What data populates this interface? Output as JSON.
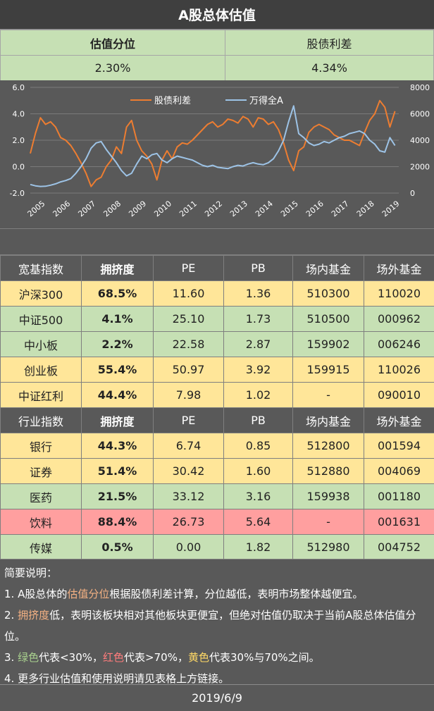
{
  "title": "A股总体估值",
  "valuation": {
    "headers": [
      "估值分位",
      "股债利差"
    ],
    "values": [
      "2.30%",
      "4.34%"
    ]
  },
  "chart_data": {
    "type": "line",
    "legend": [
      "股债利差",
      "万得全A"
    ],
    "left_axis": {
      "min": -2,
      "max": 6,
      "ticks": [
        "-2.0",
        "0.0",
        "2.0",
        "4.0",
        "6.0"
      ]
    },
    "right_axis": {
      "min": 0,
      "max": 8000,
      "ticks": [
        "0",
        "2000",
        "4000",
        "6000",
        "8000"
      ]
    },
    "x_labels": [
      "2005",
      "2006",
      "2007",
      "2008",
      "2009",
      "2010",
      "2011",
      "2012",
      "2013",
      "2014",
      "2015",
      "2016",
      "2017",
      "2018",
      "2019"
    ],
    "series": [
      {
        "name": "股债利差",
        "axis": "left",
        "color": "#ed7d31",
        "x": [
          2005.0,
          2005.2,
          2005.4,
          2005.6,
          2005.8,
          2006.0,
          2006.2,
          2006.4,
          2006.6,
          2006.8,
          2007.0,
          2007.2,
          2007.4,
          2007.6,
          2007.8,
          2008.0,
          2008.2,
          2008.4,
          2008.6,
          2008.8,
          2009.0,
          2009.2,
          2009.4,
          2009.6,
          2009.8,
          2010.0,
          2010.2,
          2010.4,
          2010.6,
          2010.8,
          2011.0,
          2011.2,
          2011.4,
          2011.6,
          2011.8,
          2012.0,
          2012.2,
          2012.4,
          2012.6,
          2012.8,
          2013.0,
          2013.2,
          2013.4,
          2013.6,
          2013.8,
          2014.0,
          2014.2,
          2014.4,
          2014.6,
          2014.8,
          2015.0,
          2015.2,
          2015.4,
          2015.6,
          2015.8,
          2016.0,
          2016.2,
          2016.4,
          2016.6,
          2016.8,
          2017.0,
          2017.2,
          2017.4,
          2017.6,
          2017.8,
          2018.0,
          2018.2,
          2018.4,
          2018.6,
          2018.8,
          2019.0,
          2019.2,
          2019.4
        ],
        "y": [
          1.0,
          2.5,
          3.7,
          3.2,
          3.4,
          3.0,
          2.2,
          2.0,
          1.6,
          1.0,
          0.3,
          -0.5,
          -1.5,
          -1.0,
          -0.8,
          0.0,
          0.5,
          1.5,
          1.0,
          3.0,
          3.5,
          2.0,
          1.2,
          0.8,
          0.2,
          -1.0,
          0.5,
          1.2,
          0.6,
          1.5,
          1.8,
          1.7,
          2.0,
          2.4,
          2.8,
          3.2,
          3.4,
          3.0,
          3.2,
          3.6,
          3.5,
          3.3,
          3.8,
          3.6,
          3.0,
          3.7,
          3.6,
          3.2,
          3.4,
          2.8,
          1.8,
          0.5,
          -0.3,
          1.2,
          1.5,
          2.6,
          3.0,
          3.2,
          3.0,
          2.8,
          2.4,
          2.2,
          2.0,
          2.0,
          1.8,
          1.6,
          2.6,
          3.5,
          4.0,
          5.0,
          4.5,
          3.0,
          4.2
        ]
      },
      {
        "name": "万得全A",
        "axis": "right",
        "color": "#9dc3e6",
        "x": [
          2005.0,
          2005.2,
          2005.4,
          2005.6,
          2005.8,
          2006.0,
          2006.2,
          2006.4,
          2006.6,
          2006.8,
          2007.0,
          2007.2,
          2007.4,
          2007.6,
          2007.8,
          2008.0,
          2008.2,
          2008.4,
          2008.6,
          2008.8,
          2009.0,
          2009.2,
          2009.4,
          2009.6,
          2009.8,
          2010.0,
          2010.2,
          2010.4,
          2010.6,
          2010.8,
          2011.0,
          2011.2,
          2011.4,
          2011.6,
          2011.8,
          2012.0,
          2012.2,
          2012.4,
          2012.6,
          2012.8,
          2013.0,
          2013.2,
          2013.4,
          2013.6,
          2013.8,
          2014.0,
          2014.2,
          2014.4,
          2014.6,
          2014.8,
          2015.0,
          2015.2,
          2015.4,
          2015.6,
          2015.8,
          2016.0,
          2016.2,
          2016.4,
          2016.6,
          2016.8,
          2017.0,
          2017.2,
          2017.4,
          2017.6,
          2017.8,
          2018.0,
          2018.2,
          2018.4,
          2018.6,
          2018.8,
          2019.0,
          2019.2,
          2019.4
        ],
        "y": [
          650,
          550,
          500,
          520,
          600,
          700,
          850,
          950,
          1100,
          1500,
          2000,
          2600,
          3400,
          3800,
          3900,
          3300,
          2800,
          2300,
          1700,
          1300,
          1500,
          2200,
          2800,
          2600,
          2900,
          3000,
          2500,
          2300,
          2600,
          2800,
          2700,
          2600,
          2500,
          2300,
          2100,
          2000,
          2100,
          1950,
          1900,
          1850,
          2000,
          2100,
          2050,
          2200,
          2300,
          2200,
          2150,
          2300,
          2600,
          3200,
          4000,
          5400,
          6600,
          4500,
          4200,
          3800,
          3600,
          3700,
          3900,
          3800,
          4000,
          4200,
          4300,
          4500,
          4600,
          4700,
          4500,
          4000,
          3700,
          3200,
          3100,
          4200,
          3600
        ]
      }
    ]
  },
  "broad_index": {
    "header": [
      "宽基指数",
      "拥挤度",
      "PE",
      "PB",
      "场内基金",
      "场外基金"
    ],
    "rows": [
      {
        "name": "沪深300",
        "crowd": "68.5%",
        "pe": "11.60",
        "pb": "1.36",
        "onsite": "510300",
        "offsite": "110020",
        "color": "yellow"
      },
      {
        "name": "中证500",
        "crowd": "4.1%",
        "pe": "25.10",
        "pb": "1.73",
        "onsite": "510500",
        "offsite": "000962",
        "color": "green"
      },
      {
        "name": "中小板",
        "crowd": "2.2%",
        "pe": "22.58",
        "pb": "2.87",
        "onsite": "159902",
        "offsite": "006246",
        "color": "green"
      },
      {
        "name": "创业板",
        "crowd": "55.4%",
        "pe": "50.97",
        "pb": "3.92",
        "onsite": "159915",
        "offsite": "110026",
        "color": "yellow"
      },
      {
        "name": "中证红利",
        "crowd": "44.4%",
        "pe": "7.98",
        "pb": "1.02",
        "onsite": "-",
        "offsite": "090010",
        "color": "yellow"
      }
    ]
  },
  "industry_index": {
    "header": [
      "行业指数",
      "拥挤度",
      "PE",
      "PB",
      "场内基金",
      "场外基金"
    ],
    "rows": [
      {
        "name": "银行",
        "crowd": "44.3%",
        "pe": "6.74",
        "pb": "0.85",
        "onsite": "512800",
        "offsite": "001594",
        "color": "yellow"
      },
      {
        "name": "证券",
        "crowd": "51.4%",
        "pe": "30.42",
        "pb": "1.60",
        "onsite": "512880",
        "offsite": "004069",
        "color": "yellow"
      },
      {
        "name": "医药",
        "crowd": "21.5%",
        "pe": "33.12",
        "pb": "3.16",
        "onsite": "159938",
        "offsite": "001180",
        "color": "green"
      },
      {
        "name": "饮料",
        "crowd": "88.4%",
        "pe": "26.73",
        "pb": "5.64",
        "onsite": "-",
        "offsite": "001631",
        "color": "red"
      },
      {
        "name": "传媒",
        "crowd": "0.5%",
        "pe": "0.00",
        "pb": "1.82",
        "onsite": "512980",
        "offsite": "004752",
        "color": "green"
      }
    ]
  },
  "notes": {
    "title": "简要说明：",
    "line1_a": "1. A股总体的",
    "line1_hl": "估值分位",
    "line1_b": "根据股债利差计算，分位越低，表明市场整体越便宜。",
    "line2_a": "2. ",
    "line2_hl": "拥挤度",
    "line2_b": "低，表明该板块相对其他板块更便宜，但绝对估值仍取决于当前A股总体估值分位。",
    "line3_a": "3. ",
    "line3_green": "绿色",
    "line3_b": "代表<30%，",
    "line3_red": "红色",
    "line3_c": "代表>70%，",
    "line3_yellow": "黄色",
    "line3_d": "代表30%与70%之间。",
    "line4": "4. 更多行业估值和使用说明请见表格上方链接。"
  },
  "date": "2019/6/9"
}
